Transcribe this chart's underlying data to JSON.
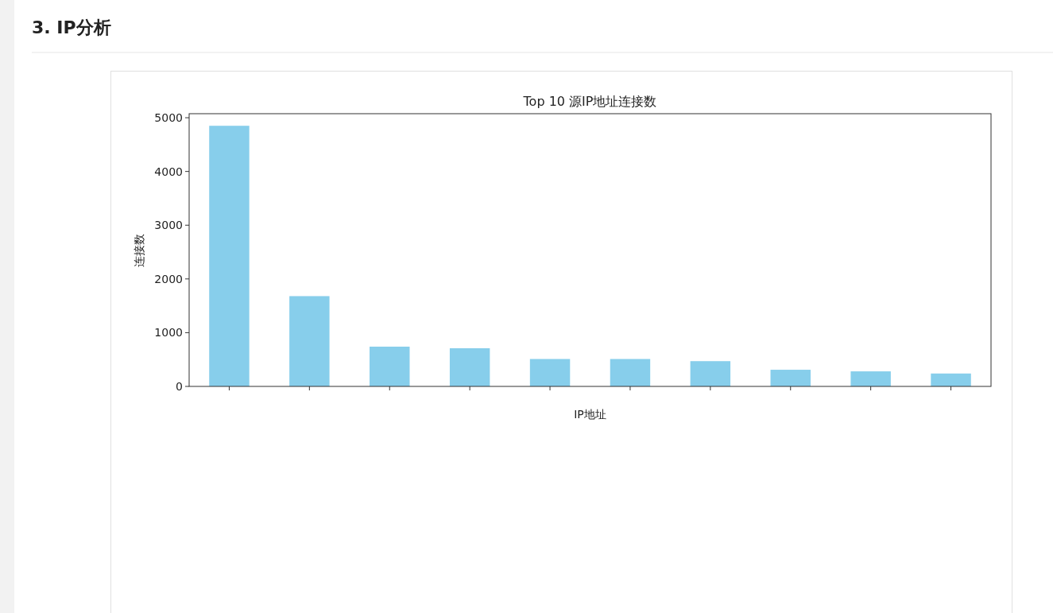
{
  "chart_data": {
    "type": "bar",
    "title": "Top 10 源IP地址连接数",
    "xlabel": "IP地址",
    "ylabel": "连接数",
    "annotations": [
      "3. IP分析"
    ],
    "categories": [
      null,
      null,
      null,
      null,
      null,
      null,
      null,
      null,
      null,
      null
    ],
    "values": [
      4850,
      1680,
      740,
      710,
      510,
      510,
      470,
      310,
      280,
      240
    ],
    "color": "#87ceeb",
    "ylim": [
      0,
      5075
    ],
    "yticks": [
      0,
      1000,
      2000,
      3000,
      4000,
      5000
    ],
    "grid": false,
    "legend": false
  }
}
